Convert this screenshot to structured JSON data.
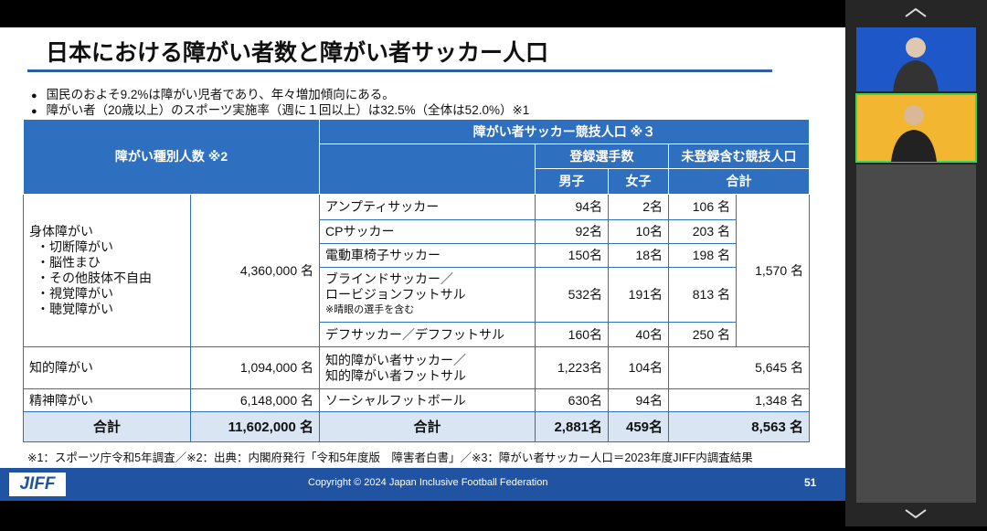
{
  "slide": {
    "title": "日本における障がい者数と障がい者サッカー人口",
    "bullets": [
      "国民のおよそ9.2%は障がい児者であり、年々増加傾向にある。",
      "障がい者（20歳以上）のスポーツ実施率（週に１回以上）は32.5%（全体は52.0%）※1"
    ],
    "table": {
      "header": {
        "left": "障がい種別人数 ※2",
        "group": "障がい者サッカー競技人口 ※３",
        "registered": "登録選手数",
        "unregistered": "未登録含む競技人口",
        "male": "男子",
        "female": "女子",
        "total": "合計"
      },
      "physical": {
        "label": "身体障がい",
        "subtypes": [
          "・切断障がい",
          "・脳性まひ",
          "・その他肢体不自由",
          "・視覚障がい",
          "・聴覚障がい"
        ],
        "count": "4,360,000 名",
        "total": "1,570 名",
        "sports": [
          {
            "name": [
              "アンプティサッカー"
            ],
            "male": "94名",
            "female": "2名",
            "total": "106 名"
          },
          {
            "name": [
              "CPサッカー"
            ],
            "male": "92名",
            "female": "10名",
            "total": "203 名"
          },
          {
            "name": [
              "電動車椅子サッカー"
            ],
            "male": "150名",
            "female": "18名",
            "total": "198 名"
          },
          {
            "name": [
              "ブラインドサッカー／",
              "ロービジョンフットサル"
            ],
            "note": "※晴眼の選手を含む",
            "male": "532名",
            "female": "191名",
            "total": "813 名"
          },
          {
            "name": [
              "デフサッカー／デフフットサル"
            ],
            "male": "160名",
            "female": "40名",
            "total": "250 名"
          }
        ]
      },
      "others": [
        {
          "label": "知的障がい",
          "count": "1,094,000 名",
          "name": [
            "知的障がい者サッカー／",
            "知的障がい者フットサル"
          ],
          "male": "1,223名",
          "female": "104名",
          "total": "5,645 名"
        },
        {
          "label": "精神障がい",
          "count": "6,148,000 名",
          "name": [
            "ソーシャルフットボール"
          ],
          "male": "630名",
          "female": "94名",
          "total": "1,348 名"
        }
      ],
      "sum": {
        "label": "合計",
        "count": "11,602,000 名",
        "label2": "合計",
        "male": "2,881名",
        "female": "459名",
        "total": "8,563 名"
      }
    },
    "footnote": "※1：スポーツ庁令和5年調査／※2：出典：内閣府発行「令和5年度版　障害者白書」／※3：障がい者サッカー人口＝2023年度JIFF内調査結果",
    "logo": "JIFF",
    "copyright": "Copyright © 2024 Japan Inclusive Football Federation",
    "page": "51"
  }
}
